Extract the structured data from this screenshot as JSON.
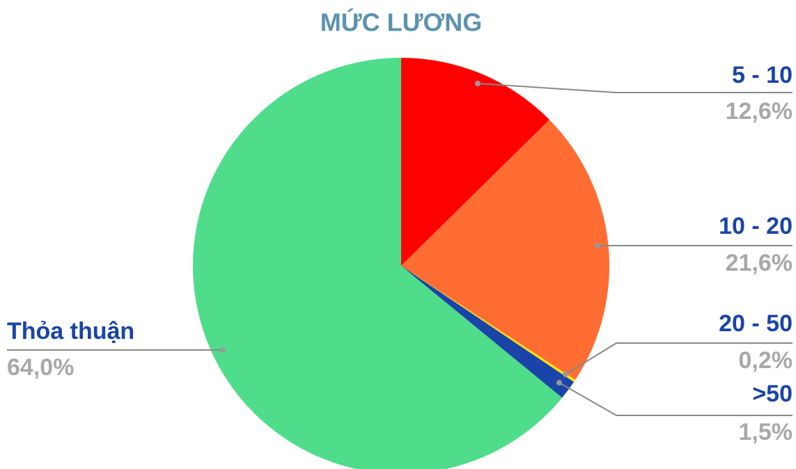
{
  "chart_data": {
    "type": "pie",
    "title": "MỨC LƯƠNG",
    "categories": [
      "5 - 10",
      "10 - 20",
      "20 - 50",
      ">50",
      "Thỏa thuận"
    ],
    "values": [
      12.6,
      21.6,
      0.2,
      1.5,
      64.0
    ],
    "value_labels": [
      "12,6%",
      "21,6%",
      "0,2%",
      "1,5%",
      "64,0%"
    ],
    "colors": [
      "#ff0000",
      "#ff6d33",
      "#ffe600",
      "#1a44a8",
      "#4fdc8b"
    ]
  }
}
